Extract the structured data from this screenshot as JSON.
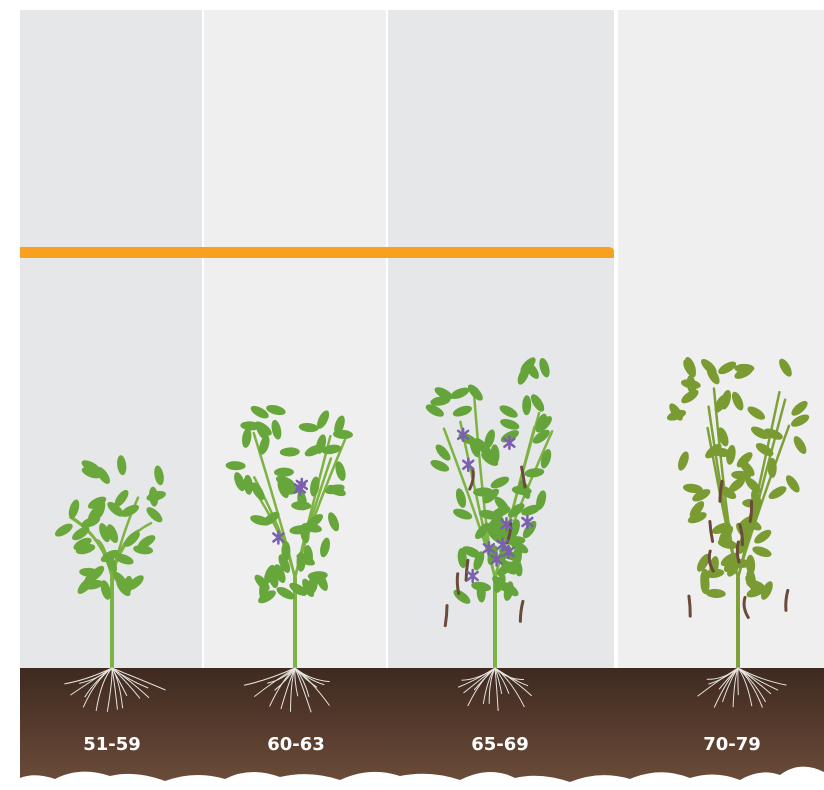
{
  "stages": [
    "51-59",
    "60-63",
    "65-69",
    "70-79"
  ]
}
